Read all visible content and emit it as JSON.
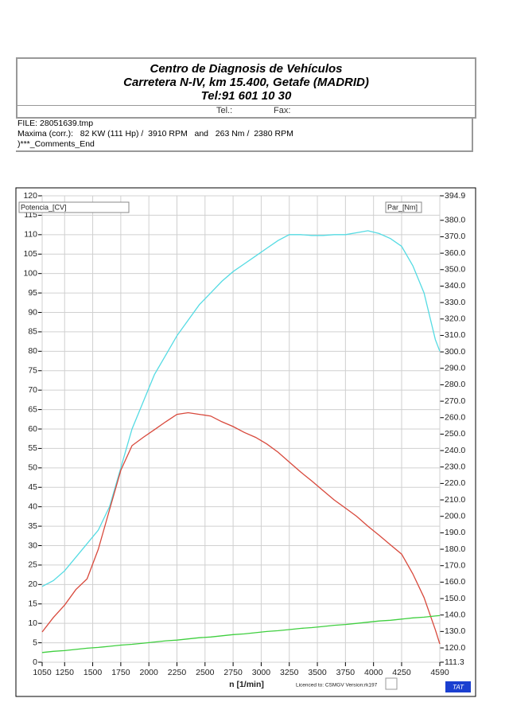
{
  "header": {
    "title_lines": [
      "Centro de Diagnosis de Vehículos",
      "Carretera N-IV, km 15.400, Getafe (MADRID)",
      "Tel:91 601 10 30"
    ],
    "tel": "Tel.:",
    "fax": "Fax:"
  },
  "info": {
    "lines": [
      "FILE: 28051639.tmp",
      "Maxima (corr.):   82 KW (111 Hp) /  3910 RPM   and   263 Nm /  2380 RPM",
      ")***_Comments_End"
    ]
  },
  "footer": {
    "license": "Licenced to: CSMGV  Version:rk197",
    "badge": "TAT"
  },
  "chart_data": {
    "type": "line",
    "x_label": "n  [1/min]",
    "grid": true,
    "x": [
      1050,
      1150,
      1250,
      1350,
      1450,
      1550,
      1650,
      1750,
      1850,
      1950,
      2050,
      2150,
      2250,
      2350,
      2450,
      2550,
      2650,
      2750,
      2850,
      2950,
      3050,
      3150,
      3250,
      3350,
      3450,
      3550,
      3650,
      3750,
      3850,
      3950,
      4050,
      4150,
      4250,
      4350,
      4450,
      4550,
      4590
    ],
    "xlim": [
      1050,
      4590
    ],
    "xticks": [
      1050,
      1250,
      1500,
      1750,
      2000,
      2250,
      2500,
      2750,
      3000,
      3250,
      3500,
      3750,
      4000,
      4250,
      4590
    ],
    "ylim": [
      0,
      120
    ],
    "yticks": [
      0,
      5,
      10,
      15,
      20,
      25,
      30,
      35,
      40,
      45,
      50,
      55,
      60,
      65,
      70,
      75,
      80,
      85,
      90,
      95,
      100,
      105,
      110,
      115,
      120
    ],
    "y2lim": [
      111.3,
      394.9
    ],
    "y2ticks": [
      111.3,
      {
        "value": 120,
        "label": "120.0"
      },
      {
        "value": 130,
        "label": "130.0"
      },
      {
        "value": 140,
        "label": "140.0"
      },
      {
        "value": 150,
        "label": "150.0"
      },
      {
        "value": 160,
        "label": "160.0"
      },
      {
        "value": 170,
        "label": "170.0"
      },
      {
        "value": 180,
        "label": "180.0"
      },
      {
        "value": 190,
        "label": "190.0"
      },
      {
        "value": 200,
        "label": "200.0"
      },
      {
        "value": 210,
        "label": "210.0"
      },
      {
        "value": 220,
        "label": "220.0"
      },
      {
        "value": 230,
        "label": "230.0"
      },
      {
        "value": 240,
        "label": "240.0"
      },
      {
        "value": 250,
        "label": "250.0"
      },
      {
        "value": 260,
        "label": "260.0"
      },
      {
        "value": 270,
        "label": "270.0"
      },
      {
        "value": 280,
        "label": "280.0"
      },
      {
        "value": 290,
        "label": "290.0"
      },
      {
        "value": 300,
        "label": "300.0"
      },
      {
        "value": 310,
        "label": "310.0"
      },
      {
        "value": 320,
        "label": "320.0"
      },
      {
        "value": 330,
        "label": "330.0"
      },
      {
        "value": 340,
        "label": "340.0"
      },
      {
        "value": 350,
        "label": "350.0"
      },
      {
        "value": 360,
        "label": "360.0"
      },
      {
        "value": 370,
        "label": "370.0"
      },
      {
        "value": 380,
        "label": "380.0"
      },
      394.9
    ],
    "series": [
      {
        "name": "Potencia_[CV]",
        "color": "#55dbe3",
        "values": [
          19.5,
          21,
          23.5,
          27,
          30.5,
          34,
          40,
          50,
          60,
          67,
          74,
          79,
          84,
          88,
          92,
          95,
          98,
          100.5,
          102.5,
          104.5,
          106.5,
          108.5,
          110,
          110,
          109.8,
          109.8,
          110,
          110,
          110.5,
          111,
          110.3,
          109,
          107,
          102,
          95,
          83,
          80
        ]
      },
      {
        "name": "Par_[Nm]",
        "color": "#d8493c",
        "axis": "y2",
        "values": [
          129.7,
          138.5,
          146,
          155.5,
          162,
          180,
          204,
          228,
          243,
          248,
          252.7,
          257.5,
          262,
          263,
          262,
          261,
          257.5,
          254.6,
          251,
          248,
          244,
          239,
          233,
          227,
          221.5,
          215.7,
          210,
          205,
          200,
          194,
          188.5,
          182.7,
          177,
          165,
          150.6,
          131,
          122.4
        ]
      },
      {
        "color": "#3fcf3f",
        "values": [
          2.5,
          2.8,
          3.0,
          3.3,
          3.6,
          3.8,
          4.1,
          4.4,
          4.6,
          4.9,
          5.2,
          5.5,
          5.7,
          6.0,
          6.3,
          6.5,
          6.8,
          7.1,
          7.3,
          7.6,
          7.9,
          8.1,
          8.4,
          8.7,
          8.9,
          9.2,
          9.5,
          9.7,
          10.0,
          10.3,
          10.6,
          10.8,
          11.1,
          11.4,
          11.6,
          11.9,
          12.0
        ]
      }
    ]
  }
}
